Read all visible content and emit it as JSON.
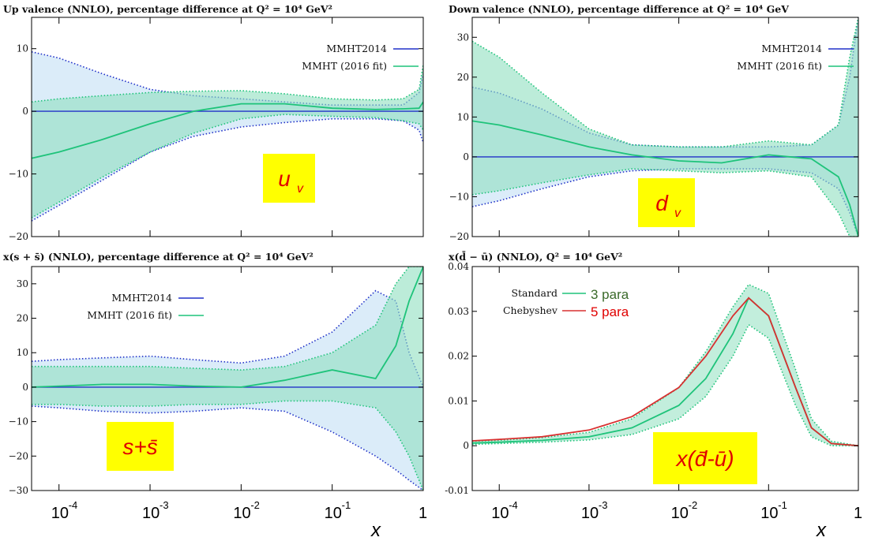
{
  "colors": {
    "mmht2014": "#2030c8",
    "mmht2016": "#1ec37a",
    "band2014": "#cfe6f7",
    "band2016": "#8fe0bf",
    "cheb": "#d83030",
    "tag_bg": "#ffff00",
    "para3": "#3a6a2a",
    "para5": "#e00000"
  },
  "x_tick_labels": [
    {
      "base": "10",
      "exp": "-4"
    },
    {
      "base": "10",
      "exp": "-3"
    },
    {
      "base": "10",
      "exp": "-2"
    },
    {
      "base": "10",
      "exp": "-1"
    },
    {
      "base": "1",
      "exp": ""
    }
  ],
  "x_axis_label": "x",
  "chart_data": [
    {
      "type": "line",
      "title": "Up valence (NNLO), percentage difference at Q² = 10⁴ GeV²",
      "tag": {
        "main": "u",
        "sub": "v"
      },
      "xscale": "log",
      "xlim": [
        5e-05,
        1
      ],
      "ylim": [
        -20,
        15
      ],
      "yticks": [
        -20,
        -10,
        0,
        10
      ],
      "legend_position": "top-right",
      "legend": [
        "MMHT2014",
        "MMHT (2016 fit)"
      ],
      "x": [
        5e-05,
        0.0001,
        0.0003,
        0.001,
        0.003,
        0.01,
        0.03,
        0.1,
        0.3,
        0.6,
        0.9,
        1.0
      ],
      "series": [
        {
          "name": "MMHT2014",
          "values": [
            0,
            0,
            0,
            0,
            0,
            0,
            0,
            0,
            0,
            0,
            0,
            0
          ],
          "upper": [
            9.5,
            8.5,
            6,
            3.5,
            2.5,
            2,
            1.5,
            1,
            1,
            1,
            3,
            6
          ],
          "lower": [
            -17.5,
            -15,
            -11,
            -6.5,
            -4,
            -2.5,
            -1.8,
            -1.2,
            -1.2,
            -1.5,
            -3,
            -5
          ]
        },
        {
          "name": "MMHT (2016 fit)",
          "values": [
            -7.5,
            -6.5,
            -4.5,
            -2,
            0,
            1.2,
            1.2,
            0.5,
            0.3,
            0.4,
            0.5,
            1.5
          ],
          "upper": [
            1.5,
            2,
            2.5,
            3,
            3.2,
            3.3,
            2.8,
            2,
            1.8,
            2,
            3.5,
            7.5
          ],
          "lower": [
            -17,
            -14.5,
            -10.5,
            -6.5,
            -3.5,
            -1.2,
            -0.5,
            -0.8,
            -1,
            -1.5,
            -2,
            -3
          ]
        }
      ]
    },
    {
      "type": "line",
      "title": "Down valence (NNLO), percentage difference at Q² = 10⁴ GeV",
      "tag": {
        "main": "d",
        "sub": "v"
      },
      "xscale": "log",
      "xlim": [
        5e-05,
        1
      ],
      "ylim": [
        -20,
        35
      ],
      "yticks": [
        -20,
        -10,
        0,
        10,
        20,
        30
      ],
      "legend_position": "top-right",
      "legend": [
        "MMHT2014",
        "MMHT (2016 fit)"
      ],
      "x": [
        5e-05,
        0.0001,
        0.0003,
        0.001,
        0.003,
        0.01,
        0.03,
        0.1,
        0.3,
        0.6,
        0.8,
        1.0
      ],
      "series": [
        {
          "name": "MMHT2014",
          "values": [
            0,
            0,
            0,
            0,
            0,
            0,
            0,
            0,
            0,
            0,
            0,
            0
          ],
          "upper": [
            17.5,
            16,
            12,
            6,
            3,
            2.5,
            2.5,
            2.5,
            3,
            8,
            20,
            35
          ],
          "lower": [
            -12.5,
            -11,
            -8,
            -5,
            -3.5,
            -3,
            -3,
            -3,
            -4,
            -8,
            -14,
            -20
          ]
        },
        {
          "name": "MMHT (2016 fit)",
          "values": [
            9,
            8,
            5.5,
            2.5,
            0.5,
            -1,
            -1.5,
            0.5,
            -0.5,
            -5,
            -12,
            -20
          ],
          "upper": [
            29,
            25,
            16,
            7,
            3,
            2.5,
            2.5,
            4,
            3,
            8,
            25,
            35
          ],
          "lower": [
            -9.5,
            -8.5,
            -6.5,
            -4.5,
            -3,
            -3.5,
            -4,
            -3.5,
            -5,
            -14,
            -20,
            -20
          ]
        }
      ]
    },
    {
      "type": "line",
      "title": "x(s + s̄) (NNLO), percentage difference at Q² = 10⁴ GeV²",
      "tag": {
        "main": "s+s̄",
        "sub": ""
      },
      "xscale": "log",
      "xlim": [
        5e-05,
        1
      ],
      "ylim": [
        -30,
        35
      ],
      "yticks": [
        -30,
        -20,
        -10,
        0,
        10,
        20,
        30
      ],
      "legend_position": "top-left",
      "legend": [
        "MMHT2014",
        "MMHT (2016 fit)"
      ],
      "x": [
        5e-05,
        0.0001,
        0.0003,
        0.001,
        0.003,
        0.01,
        0.03,
        0.1,
        0.3,
        0.5,
        0.7,
        1.0
      ],
      "series": [
        {
          "name": "MMHT2014",
          "values": [
            0,
            0,
            0,
            0,
            0,
            0,
            0,
            0,
            0,
            0,
            0,
            0
          ],
          "upper": [
            7.5,
            8,
            8.5,
            9,
            8,
            7,
            9,
            16,
            28,
            25,
            10,
            0
          ],
          "lower": [
            -5.5,
            -6,
            -7,
            -7.5,
            -7,
            -6,
            -7,
            -13,
            -20,
            -24,
            -27,
            -30
          ]
        },
        {
          "name": "MMHT (2016 fit)",
          "values": [
            0,
            0.3,
            0.8,
            0.8,
            0.3,
            0,
            2,
            5,
            2.5,
            12,
            25,
            35
          ],
          "upper": [
            6,
            6,
            6,
            6,
            5.5,
            5,
            6,
            10,
            18,
            30,
            35,
            35
          ],
          "lower": [
            -5,
            -5,
            -5.5,
            -5.5,
            -5,
            -5,
            -4,
            -4,
            -6,
            -13,
            -20,
            -30
          ]
        }
      ]
    },
    {
      "type": "line",
      "title": "x(d̄ − ū) (NNLO), Q² = 10⁴ GeV²",
      "tag": {
        "main": "x(d̄-ū)",
        "sub": ""
      },
      "xscale": "log",
      "xlim": [
        5e-05,
        1
      ],
      "ylim": [
        -0.01,
        0.04
      ],
      "yticks": [
        -0.01,
        0,
        0.01,
        0.02,
        0.03,
        0.04
      ],
      "ytick_labels": [
        "-0.01",
        "0",
        "0.01",
        "0.02",
        "0.03",
        "0.04"
      ],
      "legend_position": "top-left",
      "legend": [
        {
          "label": "Standard",
          "note": "3 para"
        },
        {
          "label": "Chebyshev",
          "note": "5 para"
        }
      ],
      "x": [
        5e-05,
        0.0001,
        0.0003,
        0.001,
        0.003,
        0.01,
        0.02,
        0.04,
        0.06,
        0.1,
        0.2,
        0.3,
        0.5,
        1.0
      ],
      "series": [
        {
          "name": "Standard",
          "values": [
            0.0006,
            0.0008,
            0.0012,
            0.002,
            0.004,
            0.009,
            0.015,
            0.025,
            0.033,
            0.029,
            0.013,
            0.004,
            0.0005,
            0
          ],
          "upper": [
            0.001,
            0.0012,
            0.0018,
            0.003,
            0.006,
            0.013,
            0.021,
            0.031,
            0.036,
            0.034,
            0.017,
            0.006,
            0.001,
            0
          ],
          "lower": [
            0.0003,
            0.0005,
            0.0008,
            0.0013,
            0.0025,
            0.006,
            0.011,
            0.02,
            0.027,
            0.024,
            0.009,
            0.002,
            0,
            0
          ]
        },
        {
          "name": "Chebyshev",
          "values": [
            0.0011,
            0.0014,
            0.002,
            0.0035,
            0.0065,
            0.013,
            0.02,
            0.029,
            0.033,
            0.029,
            0.013,
            0.004,
            0.0005,
            0
          ]
        }
      ]
    }
  ]
}
